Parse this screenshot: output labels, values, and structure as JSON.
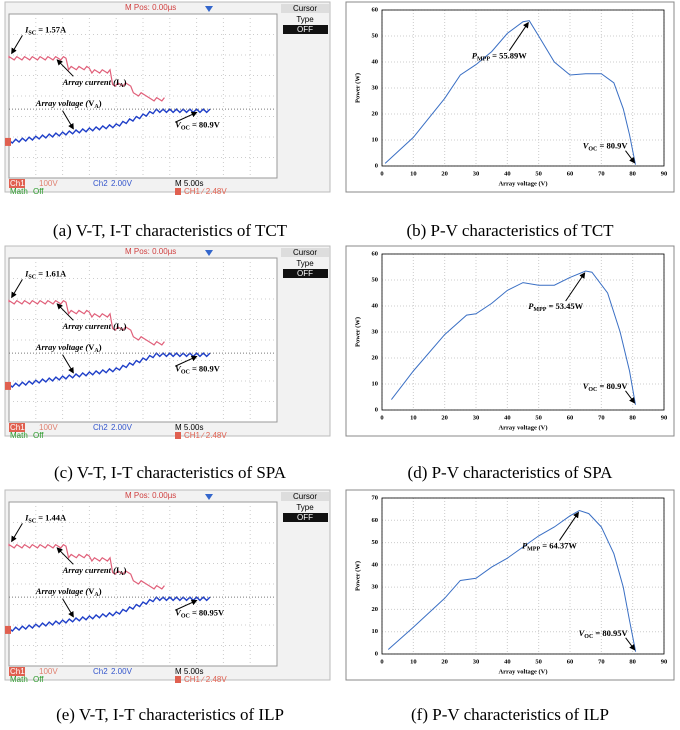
{
  "scope_panels": [
    {
      "m_pos": "M Pos: 0.00µs",
      "cursor": "Cursor",
      "type_label": "Type",
      "off": "OFF",
      "isc": [
        {
          "text": "I"
        },
        {
          "text": "SC",
          "sub": true
        },
        {
          "text": " = 1.57A"
        }
      ],
      "current_label": [
        {
          "text": "Array current ("
        },
        {
          "text": "I"
        },
        {
          "text": "A",
          "sub": true
        },
        {
          "text": ")"
        }
      ],
      "voltage_label": [
        {
          "text": "Array voltage ("
        },
        {
          "text": "V"
        },
        {
          "text": "A",
          "sub": true
        },
        {
          "text": ")"
        }
      ],
      "voc": [
        {
          "text": "V"
        },
        {
          "text": "OC",
          "sub": true
        },
        {
          "text": " = 80.9V"
        }
      ],
      "ch1": "Ch1",
      "ch1_scale": "100V",
      "ch2": "Ch2",
      "ch2_scale": "2.00V",
      "time": "M 5.00s",
      "math": "Math",
      "math_state": "Off",
      "trigger": "CH1 ∕ 2.48V"
    },
    {
      "m_pos": "M Pos: 0.00µs",
      "cursor": "Cursor",
      "type_label": "Type",
      "off": "OFF",
      "isc": [
        {
          "text": "I"
        },
        {
          "text": "SC",
          "sub": true
        },
        {
          "text": " = 1.61A"
        }
      ],
      "current_label": [
        {
          "text": "Array current ("
        },
        {
          "text": "I"
        },
        {
          "text": "A",
          "sub": true
        },
        {
          "text": ")"
        }
      ],
      "voltage_label": [
        {
          "text": "Array voltage ("
        },
        {
          "text": "V"
        },
        {
          "text": "A",
          "sub": true
        },
        {
          "text": ")"
        }
      ],
      "voc": [
        {
          "text": "V"
        },
        {
          "text": "OC",
          "sub": true
        },
        {
          "text": " = 80.9V"
        }
      ],
      "ch1": "Ch1",
      "ch1_scale": "100V",
      "ch2": "Ch2",
      "ch2_scale": "2.00V",
      "time": "M 5.00s",
      "math": "Math",
      "math_state": "Off",
      "trigger": "CH1 ∕ 2.48V"
    },
    {
      "m_pos": "M Pos: 0.00µs",
      "cursor": "Cursor",
      "type_label": "Type",
      "off": "OFF",
      "isc": [
        {
          "text": "I"
        },
        {
          "text": "SC",
          "sub": true
        },
        {
          "text": " = 1.44A"
        }
      ],
      "current_label": [
        {
          "text": "Array current ("
        },
        {
          "text": "I"
        },
        {
          "text": "A",
          "sub": true
        },
        {
          "text": ")"
        }
      ],
      "voltage_label": [
        {
          "text": "Array voltage ("
        },
        {
          "text": "V"
        },
        {
          "text": "A",
          "sub": true
        },
        {
          "text": ")"
        }
      ],
      "voc": [
        {
          "text": "V"
        },
        {
          "text": "OC",
          "sub": true
        },
        {
          "text": " = 80.95V"
        }
      ],
      "ch1": "Ch1",
      "ch1_scale": "100V",
      "ch2": "Ch2",
      "ch2_scale": "2.00V",
      "time": "M 5.00s",
      "math": "Math",
      "math_state": "Off",
      "trigger": "CH1 ∕ 2.48V"
    }
  ],
  "chart_data": [
    {
      "type": "line",
      "xlabel": "Array voltage (V)",
      "ylabel": "Power (W)",
      "xlim": [
        0,
        90
      ],
      "ylim": [
        0,
        60
      ],
      "xticks": [
        0,
        10,
        20,
        30,
        40,
        50,
        60,
        70,
        80,
        90
      ],
      "yticks": [
        0,
        10,
        20,
        30,
        40,
        50,
        60
      ],
      "grid": true,
      "x": [
        1,
        10,
        20,
        25,
        30,
        35,
        40,
        45,
        47,
        50,
        55,
        60,
        65,
        70,
        74,
        77,
        79,
        80.9
      ],
      "series": [
        {
          "color": "#3a6fc4",
          "values": [
            1,
            11,
            26,
            35,
            39,
            44,
            51,
            55.5,
            55.89,
            50,
            40,
            35,
            35.5,
            35.5,
            32,
            22,
            12,
            0.5
          ]
        }
      ],
      "annotations": [
        [
          {
            "text": "P"
          },
          {
            "text": "MPP",
            "sub": true
          },
          {
            "text": " = 55.89W"
          }
        ],
        [
          {
            "text": "V"
          },
          {
            "text": "OC",
            "sub": true
          },
          {
            "text": " = 80.9V"
          }
        ]
      ]
    },
    {
      "type": "line",
      "xlabel": "Array voltage (V)",
      "ylabel": "Power (W)",
      "xlim": [
        0,
        90
      ],
      "ylim": [
        0,
        60
      ],
      "xticks": [
        0,
        10,
        20,
        30,
        40,
        50,
        60,
        70,
        80,
        90
      ],
      "yticks": [
        0,
        10,
        20,
        30,
        40,
        50,
        60
      ],
      "grid": true,
      "x": [
        3,
        10,
        20,
        27,
        30,
        35,
        40,
        45,
        50,
        55,
        60,
        65,
        67,
        72,
        76,
        79,
        80.9
      ],
      "series": [
        {
          "color": "#3a6fc4",
          "values": [
            4,
            15,
            29,
            36.5,
            37,
            41,
            46,
            49,
            48,
            48,
            51,
            53.45,
            53,
            45,
            30,
            15,
            2
          ]
        }
      ],
      "annotations": [
        [
          {
            "text": "P"
          },
          {
            "text": "MPP",
            "sub": true
          },
          {
            "text": " = 53.45W"
          }
        ],
        [
          {
            "text": "V"
          },
          {
            "text": "OC",
            "sub": true
          },
          {
            "text": " = 80.9V"
          }
        ]
      ]
    },
    {
      "type": "line",
      "xlabel": "Array voltage (V)",
      "ylabel": "Power (W)",
      "xlim": [
        0,
        90
      ],
      "ylim": [
        0,
        70
      ],
      "xticks": [
        0,
        10,
        20,
        30,
        40,
        50,
        60,
        70,
        80,
        90
      ],
      "yticks": [
        0,
        10,
        20,
        30,
        40,
        50,
        60,
        70
      ],
      "grid": true,
      "x": [
        2,
        10,
        20,
        25,
        30,
        35,
        40,
        45,
        50,
        55,
        60,
        63,
        66,
        70,
        74,
        77,
        79,
        80.95
      ],
      "series": [
        {
          "color": "#3a6fc4",
          "values": [
            2,
            12,
            25,
            33,
            34,
            39,
            43,
            48,
            53,
            57,
            62,
            64.37,
            63,
            57,
            45,
            30,
            15,
            1
          ]
        }
      ],
      "annotations": [
        [
          {
            "text": "P"
          },
          {
            "text": "MPP",
            "sub": true
          },
          {
            "text": " = 64.37W"
          }
        ],
        [
          {
            "text": "V"
          },
          {
            "text": "OC",
            "sub": true
          },
          {
            "text": " = 80.95V"
          }
        ]
      ]
    }
  ],
  "captions": [
    [
      "(a) V-T, I-T characteristics of TCT",
      "(b) P-V characteristics of TCT"
    ],
    [
      "(c) V-T, I-T characteristics of SPA",
      "(d) P-V characteristics of SPA"
    ],
    [
      "(e) V-T, I-T characteristics of ILP",
      "(f) P-V characteristics of ILP"
    ]
  ]
}
